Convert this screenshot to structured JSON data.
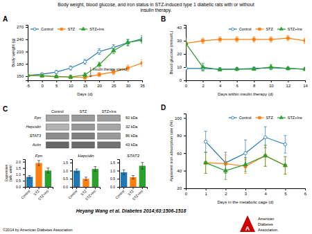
{
  "title": "Body weight, blood glucose, and iron status in STZ-induced type 1 diabetic rats with or without\ninsulin therapy.",
  "citation": "Heyang Wang et al. Diabetes 2014;63:1506-1518",
  "copyright": "©2014 by American Diabetes Association",
  "logo": {
    "color": "#cc0000",
    "mark": "A",
    "lines": [
      "American",
      "Diabetes",
      "Association."
    ]
  },
  "chart_data": [
    {
      "type": "line",
      "label": "A",
      "xlabel": "Days (d)",
      "ylabel": "Body weight (g)",
      "xlim": [
        -5,
        35
      ],
      "ylim": [
        140,
        275
      ],
      "xticks": [
        -5,
        0,
        5,
        10,
        15,
        20,
        25,
        30,
        35
      ],
      "yticks": [
        150,
        180,
        210,
        240,
        270
      ],
      "legend": "upper left",
      "x": [
        -5,
        0,
        5,
        10,
        15,
        20,
        25,
        30,
        35
      ],
      "series": [
        {
          "name": "Control",
          "marker": "circle",
          "values": [
            152,
            155,
            160,
            170,
            185,
            210,
            220,
            232,
            241
          ],
          "errors": [
            3,
            3,
            4,
            5,
            6,
            7,
            7,
            8,
            8
          ]
        },
        {
          "name": "STZ",
          "marker": "square",
          "values": [
            152,
            151,
            149,
            148,
            147,
            154,
            160,
            170,
            182
          ],
          "errors": [
            3,
            3,
            3,
            4,
            5,
            5,
            6,
            7,
            8
          ]
        },
        {
          "name": "STZ+Ins",
          "marker": "triangle",
          "values": [
            152,
            151,
            149,
            148,
            153,
            178,
            212,
            232,
            238
          ],
          "errors": [
            3,
            3,
            3,
            4,
            5,
            6,
            7,
            7,
            7
          ]
        }
      ],
      "annotations": [
        {
          "text": "Insulin therapy started",
          "x": 17,
          "y": 148
        }
      ]
    },
    {
      "type": "line",
      "label": "B",
      "xlabel": "Days within insulin therapy (d)",
      "ylabel": "Blood glucose (mmol/L)",
      "xlim": [
        0,
        14
      ],
      "ylim": [
        0,
        42
      ],
      "xticks": [
        0,
        2,
        4,
        6,
        8,
        10,
        12,
        14
      ],
      "yticks": [
        0,
        10,
        20,
        30,
        40
      ],
      "legend": "upper right",
      "x": [
        0,
        2,
        4,
        6,
        8,
        10,
        12,
        14
      ],
      "series": [
        {
          "name": "Control",
          "marker": "circle",
          "values": [
            9,
            9,
            8.5,
            8.5,
            9,
            9.5,
            9,
            8.5
          ],
          "errors": [
            1.5,
            1.5,
            1,
            1,
            1,
            1,
            1,
            1
          ]
        },
        {
          "name": "STZ",
          "marker": "square",
          "values": [
            28,
            30,
            31,
            31,
            31,
            31,
            32,
            30
          ],
          "errors": [
            4,
            2,
            2,
            2,
            2,
            2,
            2,
            2
          ]
        },
        {
          "name": "STZ+Ins",
          "marker": "triangle",
          "values": [
            28,
            10,
            8,
            8.5,
            8.5,
            10,
            9,
            8.5
          ],
          "errors": [
            5,
            3,
            1,
            1,
            1,
            2,
            1,
            1
          ]
        }
      ]
    },
    {
      "type": "blot",
      "label": "C",
      "categories": [
        "Control",
        "STZ",
        "STZ+Ins"
      ],
      "series": [
        {
          "name": "Fpn",
          "label": "60 kDa",
          "colors": [
            "#a6a6a6",
            "#999999",
            "#9e9e9e"
          ]
        },
        {
          "name": "Hepcidin",
          "label": "32 kDa",
          "colors": [
            "#b2b2b2",
            "#999999",
            "#a6a6a6"
          ]
        },
        {
          "name": "STAT3",
          "label": "86 kDa",
          "colors": [
            "#8c8c8c",
            "#808080",
            "#999999"
          ]
        },
        {
          "name": "Actin",
          "label": "43 kDa",
          "colors": [
            "#666666",
            "#6b6b6b",
            "#737373"
          ]
        }
      ]
    },
    {
      "type": "bar",
      "title": "Fpn",
      "ylabel": "Expression\n(arb. units)",
      "categories": [
        "Control",
        "STZ",
        "STZ+Ins"
      ],
      "values": [
        0.8,
        1.9,
        1.3
      ],
      "errors": [
        0.1,
        0.2,
        0.2
      ],
      "ylim": [
        0,
        2.2
      ],
      "yticks": [
        {
          "value": 0,
          "label": "0.0"
        },
        0.5,
        {
          "value": 1.0,
          "label": "1.0"
        },
        1.5,
        {
          "value": 2.0,
          "label": "2.0"
        }
      ]
    },
    {
      "type": "bar",
      "title": "Hepcidin",
      "categories": [
        "Control",
        "STZ",
        "STZ+Ins"
      ],
      "values": [
        1.0,
        0.5,
        1.1
      ],
      "errors": [
        0.1,
        0.1,
        0.15
      ],
      "ylim": [
        0,
        1.7
      ],
      "yticks": [
        {
          "value": 0,
          "label": "0.0"
        },
        0.5,
        {
          "value": 1.0,
          "label": "1.0"
        },
        1.5
      ]
    },
    {
      "type": "bar",
      "title": "STAT3",
      "categories": [
        "Control",
        "STZ",
        "STZ+Ins"
      ],
      "values": [
        0.9,
        0.6,
        1.3
      ],
      "errors": [
        0.15,
        0.1,
        0.2
      ],
      "ylim": [
        0,
        1.7
      ],
      "yticks": [
        {
          "value": 0,
          "label": "0.0"
        },
        0.5,
        {
          "value": 1.0,
          "label": "1.0"
        },
        1.5
      ]
    },
    {
      "type": "line",
      "label": "D",
      "xlabel": "Days in the metabolic cage (d)",
      "ylabel": "Apparent iron absorption rate (%)",
      "xlim": [
        0,
        6
      ],
      "ylim": [
        20,
        105
      ],
      "xticks": [
        0,
        1,
        2,
        3,
        4,
        5,
        6
      ],
      "yticks": [
        20,
        40,
        60,
        80,
        100
      ],
      "legend": "upper right",
      "x": [
        1,
        2,
        3,
        4,
        5
      ],
      "series": [
        {
          "name": "Control",
          "marker": "circle",
          "values": [
            73,
            49,
            60,
            78,
            70
          ],
          "errors": [
            12,
            12,
            15,
            12,
            10
          ]
        },
        {
          "name": "STZ",
          "marker": "square",
          "values": [
            49,
            48,
            45,
            57,
            46
          ],
          "errors": [
            12,
            10,
            8,
            12,
            10
          ]
        },
        {
          "name": "STZ+Ins",
          "marker": "triangle",
          "values": [
            49,
            40,
            47,
            57,
            46
          ],
          "errors": [
            12,
            10,
            8,
            12,
            10
          ]
        }
      ]
    }
  ]
}
